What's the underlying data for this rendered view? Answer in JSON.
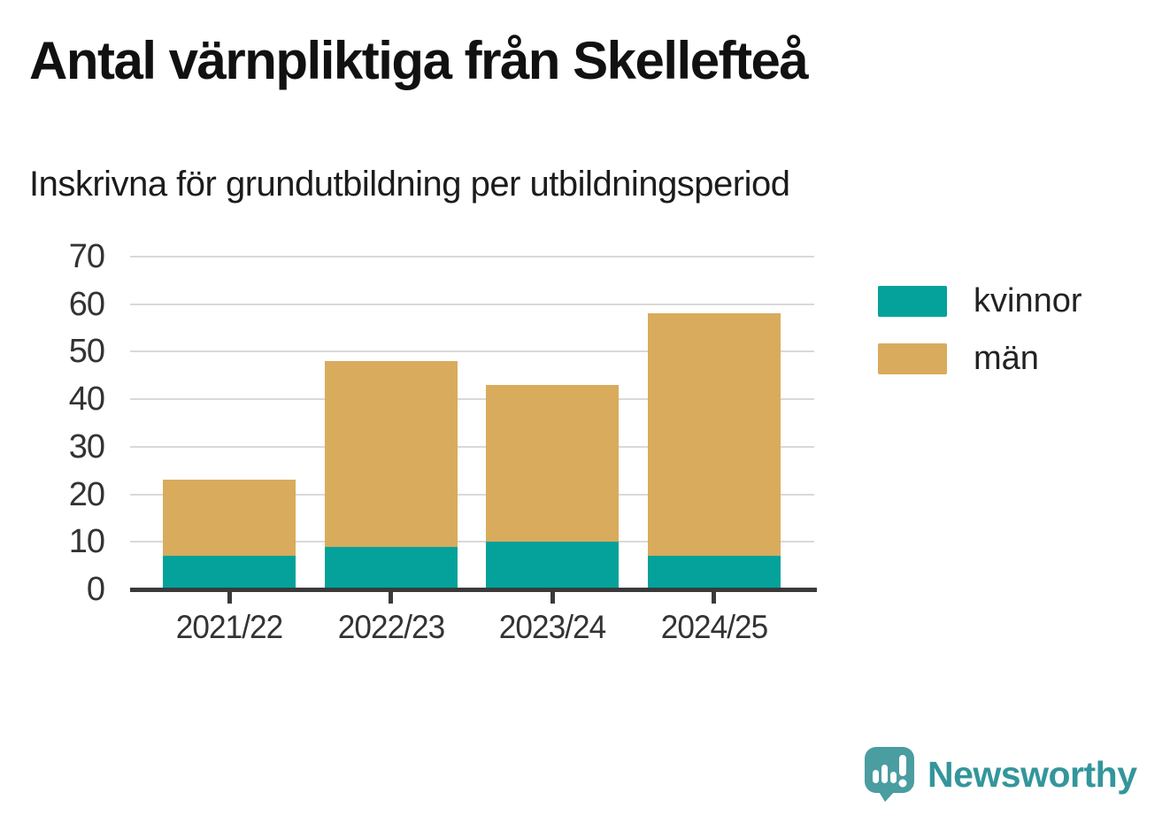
{
  "branding": {
    "wordmark": "Newsworthy"
  },
  "colors": {
    "kvinnor": "#04a29a",
    "man": "#d9ab5c",
    "gridline": "#d9d9d9",
    "axis": "#3a3a3a",
    "logo_icon": "#4a9da1",
    "logo_text": "#33969b"
  },
  "chart_data": {
    "type": "bar",
    "stacked": true,
    "title": "Antal värnpliktiga från Skellefteå",
    "subtitle": "Inskrivna för grundutbildning per utbildningsperiod",
    "categories": [
      "2021/22",
      "2022/23",
      "2023/24",
      "2024/25"
    ],
    "series": [
      {
        "name": "kvinnor",
        "color": "#04a29a",
        "values": [
          7,
          9,
          10,
          7
        ]
      },
      {
        "name": "män",
        "color": "#d9ab5c",
        "values": [
          16,
          39,
          33,
          51
        ]
      }
    ],
    "stack_totals": [
      23,
      48,
      43,
      58
    ],
    "ylim": [
      0,
      70
    ],
    "yticks": [
      0,
      10,
      20,
      30,
      40,
      50,
      60,
      70
    ],
    "xlabel": "",
    "ylabel": "",
    "grid": true,
    "legend_position": "right"
  }
}
